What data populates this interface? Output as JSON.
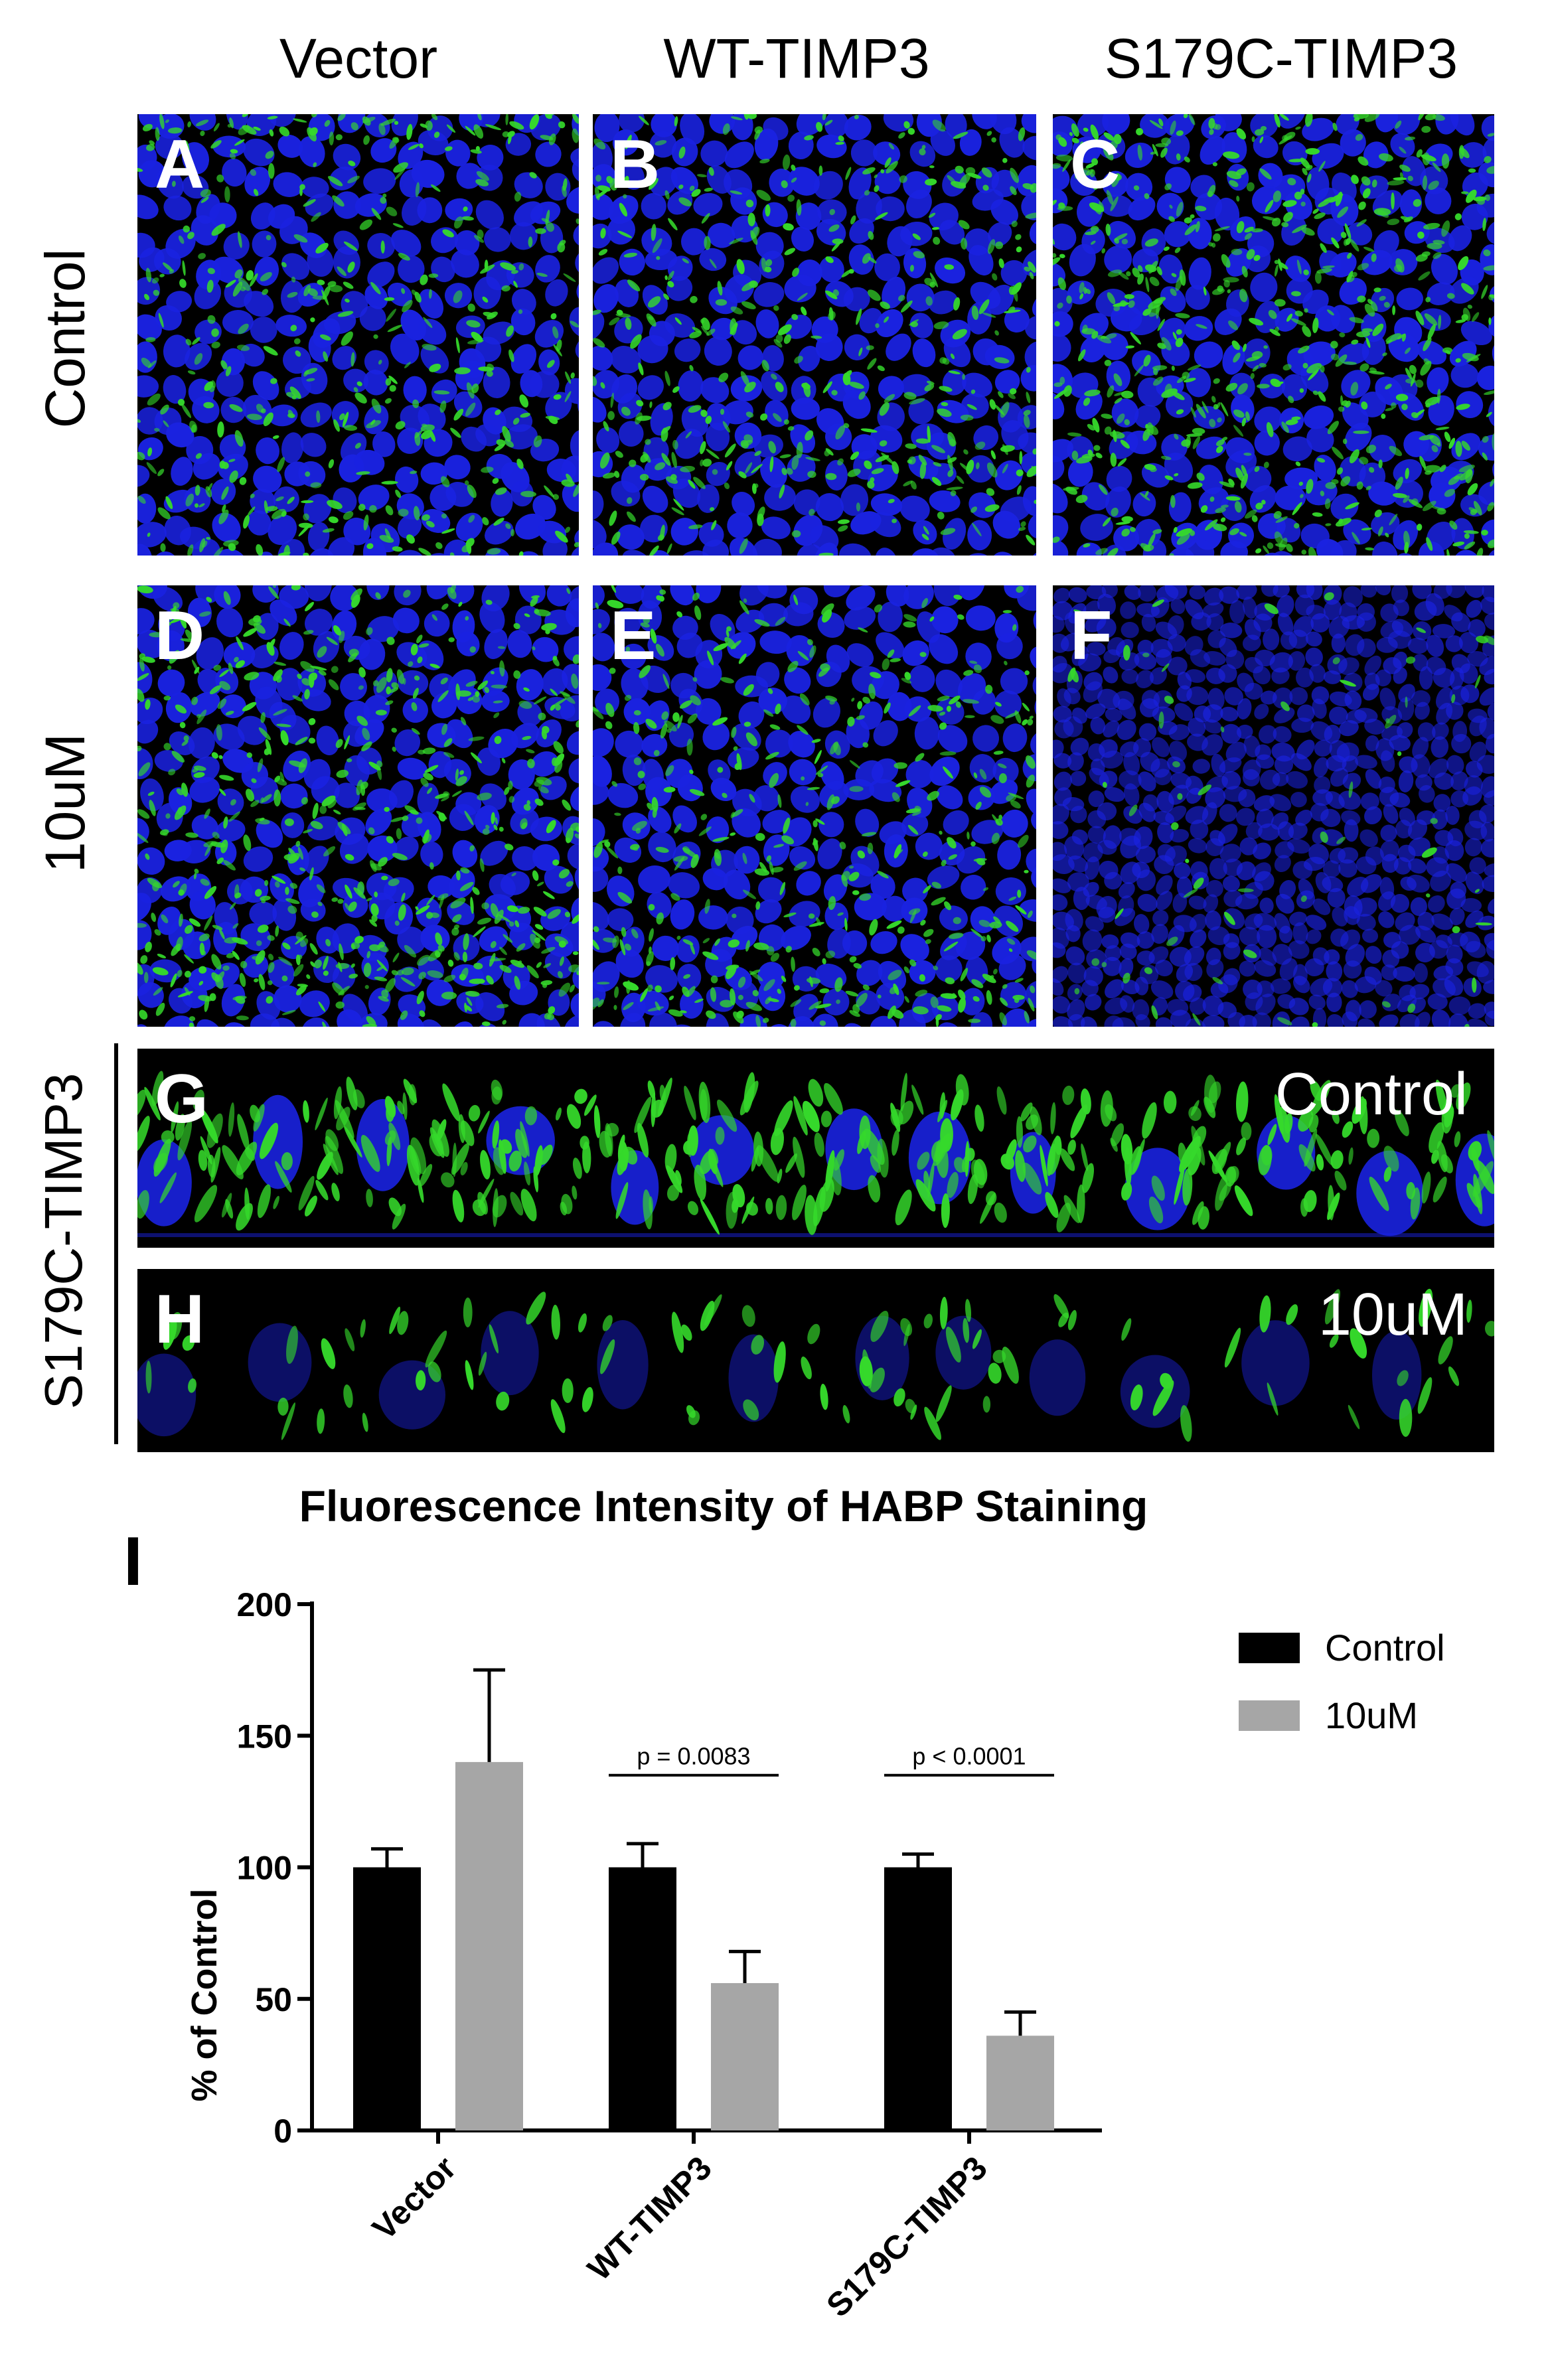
{
  "columns": [
    "Vector",
    "WT-TIMP3",
    "S179C-TIMP3"
  ],
  "rows": [
    "Control",
    "10uM"
  ],
  "panels": [
    {
      "label": "A",
      "row": "Control",
      "column": "Vector"
    },
    {
      "label": "B",
      "row": "Control",
      "column": "WT-TIMP3"
    },
    {
      "label": "C",
      "row": "Control",
      "column": "S179C-TIMP3"
    },
    {
      "label": "D",
      "row": "10uM",
      "column": "Vector"
    },
    {
      "label": "E",
      "row": "10uM",
      "column": "WT-TIMP3"
    },
    {
      "label": "F",
      "row": "10uM",
      "column": "S179C-TIMP3"
    }
  ],
  "section_panels": {
    "group_label": "S179C-TIMP3",
    "G": {
      "label": "G",
      "condition": "Control"
    },
    "H": {
      "label": "H",
      "condition": "10uM"
    }
  },
  "colors": {
    "nuclei": "#1a22e0",
    "habp": "#35d92b",
    "background": "#000000"
  },
  "chart_data": {
    "panel_label": "I",
    "type": "bar",
    "title": "Fluorescence Intensity of HABP Staining",
    "xlabel": "",
    "ylabel": "% of Control",
    "ylim": [
      0,
      200
    ],
    "yticks": [
      0,
      50,
      100,
      150,
      200
    ],
    "categories": [
      "Vector",
      "WT-TIMP3",
      "S179C-TIMP3"
    ],
    "series": [
      {
        "name": "Control",
        "color": "#000000",
        "values": [
          100,
          100,
          100
        ],
        "errors": [
          7,
          9,
          5
        ]
      },
      {
        "name": "10uM",
        "color": "#a6a6a6",
        "values": [
          140,
          56,
          36
        ],
        "errors": [
          35,
          12,
          9
        ]
      }
    ],
    "annotations": [
      {
        "category": "WT-TIMP3",
        "text": "p = 0.0083"
      },
      {
        "category": "S179C-TIMP3",
        "text": "p < 0.0001"
      }
    ],
    "legend_position": "top-right"
  }
}
